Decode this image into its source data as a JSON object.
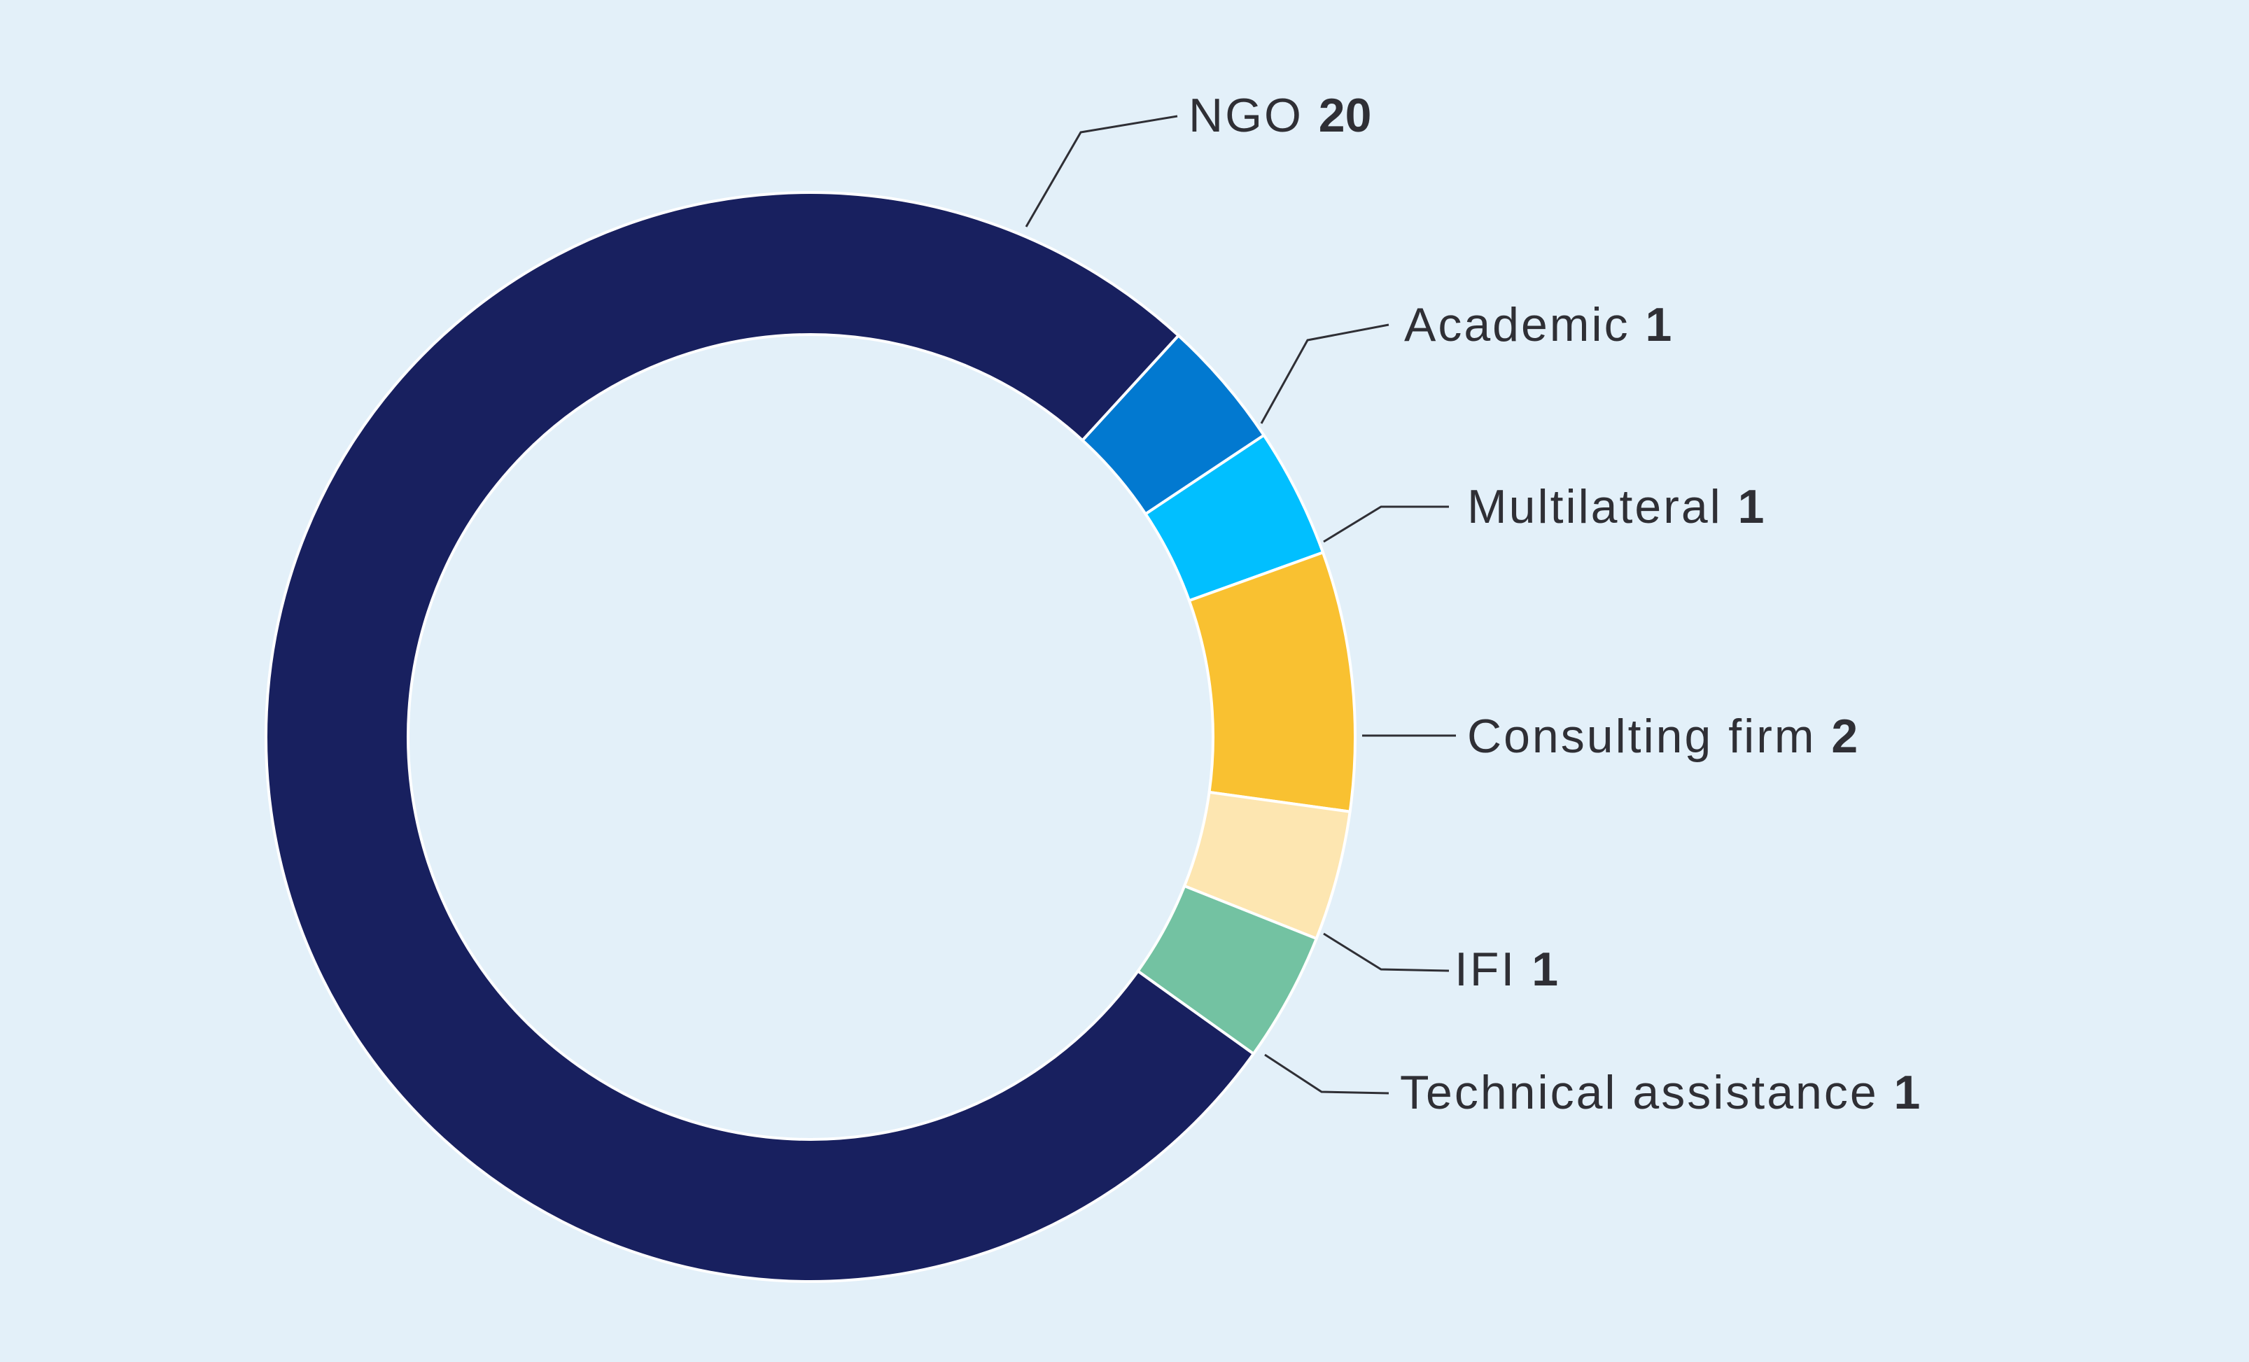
{
  "chart_data": {
    "type": "pie",
    "style": "donut",
    "background": "#e3f0f9",
    "leader_color": "#2f2f35",
    "slices": [
      {
        "label": "NGO",
        "value": 20,
        "value_text": "20",
        "color": "#18205f"
      },
      {
        "label": "Academic",
        "value": 1,
        "value_text": "1",
        "color": "#0279d0"
      },
      {
        "label": "Multilateral",
        "value": 1,
        "value_text": "1",
        "color": "#01bfff"
      },
      {
        "label": "Consulting firm",
        "value": 2,
        "value_text": "2",
        "color": "#f9c131"
      },
      {
        "label": "IFI",
        "value": 1,
        "value_text": "1",
        "color": "#fde6b1"
      },
      {
        "label": "Technical assistance",
        "value": 1,
        "value_text": "1",
        "color": "#73c2a2"
      }
    ]
  }
}
